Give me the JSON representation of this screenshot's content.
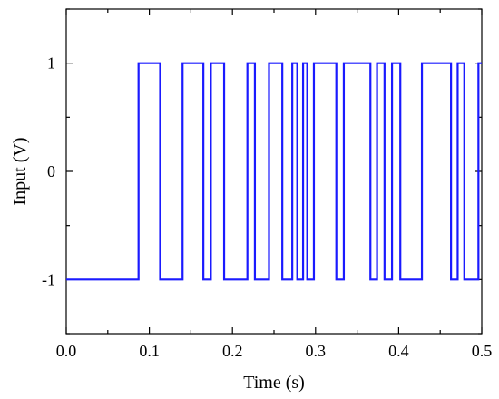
{
  "chart_data": {
    "type": "line",
    "xlabel": "Time (s)",
    "ylabel": "Input (V)",
    "xlim": [
      0.0,
      0.5
    ],
    "ylim": [
      -1.5,
      1.5
    ],
    "x_ticks": [
      0.0,
      0.1,
      0.2,
      0.3,
      0.4,
      0.5
    ],
    "x_tick_labels": [
      "0.0",
      "0.1",
      "0.2",
      "0.3",
      "0.4",
      "0.5"
    ],
    "y_ticks": [
      -1,
      0,
      1
    ],
    "y_tick_labels": [
      "-1",
      "0",
      "1"
    ],
    "line_style": "step",
    "grid": false,
    "legend": "none",
    "series": [
      {
        "color": "#1a1aff",
        "x": [
          0.0,
          0.087,
          0.087,
          0.113,
          0.113,
          0.14,
          0.14,
          0.165,
          0.165,
          0.174,
          0.174,
          0.19,
          0.19,
          0.218,
          0.218,
          0.227,
          0.227,
          0.244,
          0.244,
          0.26,
          0.26,
          0.272,
          0.272,
          0.278,
          0.278,
          0.285,
          0.285,
          0.29,
          0.29,
          0.298,
          0.298,
          0.325,
          0.325,
          0.334,
          0.334,
          0.366,
          0.366,
          0.374,
          0.374,
          0.383,
          0.383,
          0.392,
          0.392,
          0.402,
          0.402,
          0.428,
          0.428,
          0.463,
          0.463,
          0.471,
          0.471,
          0.479,
          0.479,
          0.496,
          0.496,
          0.5
        ],
        "y": [
          -1,
          -1,
          1,
          1,
          -1,
          -1,
          1,
          1,
          -1,
          -1,
          1,
          1,
          -1,
          -1,
          1,
          1,
          -1,
          -1,
          1,
          1,
          -1,
          -1,
          1,
          1,
          -1,
          -1,
          1,
          1,
          -1,
          -1,
          1,
          1,
          -1,
          -1,
          1,
          1,
          -1,
          -1,
          1,
          1,
          -1,
          -1,
          1,
          1,
          -1,
          -1,
          1,
          1,
          -1,
          -1,
          1,
          1,
          -1,
          -1,
          1,
          1
        ]
      }
    ]
  }
}
